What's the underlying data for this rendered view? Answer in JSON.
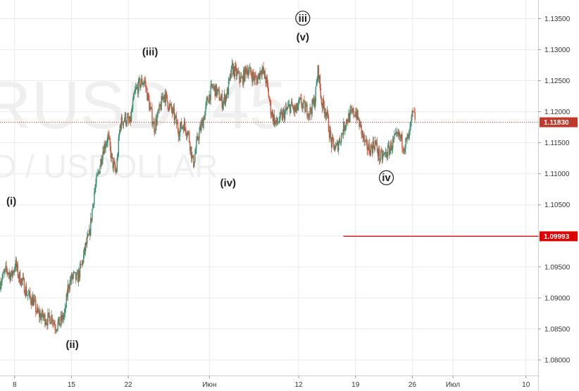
{
  "chart_data": {
    "type": "candlestick",
    "watermark": {
      "symbol": "RUSD, 45",
      "description": "D / USDOLLAR"
    },
    "x_ticks": [
      {
        "label": "8",
        "day": 8
      },
      {
        "label": "15",
        "day": 15
      },
      {
        "label": "22",
        "day": 22
      },
      {
        "label": "Июн",
        "day": 32
      },
      {
        "label": "12",
        "day": 43
      },
      {
        "label": "19",
        "day": 50
      },
      {
        "label": "26",
        "day": 57
      },
      {
        "label": "Июл",
        "day": 62
      },
      {
        "label": "10",
        "day": 71
      }
    ],
    "y_ticks": [
      "1.13500",
      "1.13000",
      "1.12500",
      "1.12000",
      "1.11500",
      "1.11000",
      "1.10500",
      "1.10000",
      "1.09500",
      "1.09000",
      "1.08500",
      "1.08000"
    ],
    "y_tick_values": [
      1.135,
      1.13,
      1.125,
      1.12,
      1.115,
      1.11,
      1.105,
      1.1,
      1.095,
      1.09,
      1.085,
      1.08
    ],
    "ylim": [
      1.0775,
      1.138
    ],
    "xlim": [
      6.2,
      72.5
    ],
    "current_price": {
      "label": "1.11830",
      "value": 1.1183,
      "color": "#c0392b"
    },
    "level_line": {
      "label": "1.09993",
      "value": 1.09993,
      "from_day": 48.5,
      "color": "#e00000"
    },
    "path": [
      [
        6.2,
        1.0925
      ],
      [
        7.0,
        1.0945
      ],
      [
        7.6,
        1.0935
      ],
      [
        8.1,
        1.0955
      ],
      [
        8.5,
        1.0935
      ],
      [
        9.0,
        1.0925
      ],
      [
        9.6,
        1.0905
      ],
      [
        10.3,
        1.0895
      ],
      [
        10.8,
        1.0875
      ],
      [
        11.4,
        1.087
      ],
      [
        12.0,
        1.0865
      ],
      [
        12.6,
        1.087
      ],
      [
        13.0,
        1.0855
      ],
      [
        13.6,
        1.086
      ],
      [
        14.2,
        1.0875
      ],
      [
        14.6,
        1.092
      ],
      [
        15.2,
        1.0935
      ],
      [
        15.7,
        1.093
      ],
      [
        16.2,
        1.095
      ],
      [
        16.8,
        1.0985
      ],
      [
        17.2,
        1.1
      ],
      [
        17.8,
        1.107
      ],
      [
        18.3,
        1.11
      ],
      [
        18.9,
        1.114
      ],
      [
        19.5,
        1.116
      ],
      [
        20.0,
        1.112
      ],
      [
        20.5,
        1.11
      ],
      [
        21.0,
        1.118
      ],
      [
        21.6,
        1.119
      ],
      [
        22.2,
        1.118
      ],
      [
        22.8,
        1.123
      ],
      [
        23.4,
        1.1245
      ],
      [
        24.0,
        1.125
      ],
      [
        24.6,
        1.121
      ],
      [
        25.2,
        1.1175
      ],
      [
        25.8,
        1.12
      ],
      [
        26.4,
        1.123
      ],
      [
        27.0,
        1.121
      ],
      [
        27.6,
        1.1195
      ],
      [
        28.2,
        1.117
      ],
      [
        28.8,
        1.118
      ],
      [
        29.4,
        1.1165
      ],
      [
        30.0,
        1.1115
      ],
      [
        30.6,
        1.116
      ],
      [
        31.2,
        1.1185
      ],
      [
        31.8,
        1.122
      ],
      [
        32.4,
        1.124
      ],
      [
        33.0,
        1.123
      ],
      [
        33.6,
        1.1215
      ],
      [
        34.2,
        1.123
      ],
      [
        34.8,
        1.127
      ],
      [
        35.4,
        1.126
      ],
      [
        36.0,
        1.125
      ],
      [
        36.6,
        1.127
      ],
      [
        37.2,
        1.126
      ],
      [
        37.8,
        1.125
      ],
      [
        38.4,
        1.127
      ],
      [
        39.0,
        1.125
      ],
      [
        39.6,
        1.12
      ],
      [
        40.2,
        1.118
      ],
      [
        40.8,
        1.119
      ],
      [
        41.4,
        1.12
      ],
      [
        42.0,
        1.121
      ],
      [
        42.6,
        1.12
      ],
      [
        43.2,
        1.1215
      ],
      [
        43.8,
        1.1205
      ],
      [
        44.4,
        1.12
      ],
      [
        45.0,
        1.122
      ],
      [
        45.4,
        1.127
      ],
      [
        45.8,
        1.1215
      ],
      [
        46.4,
        1.12
      ],
      [
        47.0,
        1.115
      ],
      [
        47.6,
        1.114
      ],
      [
        48.2,
        1.116
      ],
      [
        48.8,
        1.1185
      ],
      [
        49.4,
        1.1195
      ],
      [
        50.0,
        1.12
      ],
      [
        50.6,
        1.1175
      ],
      [
        51.2,
        1.1145
      ],
      [
        51.8,
        1.114
      ],
      [
        52.4,
        1.115
      ],
      [
        53.0,
        1.1125
      ],
      [
        53.6,
        1.113
      ],
      [
        54.2,
        1.114
      ],
      [
        54.8,
        1.1155
      ],
      [
        55.4,
        1.116
      ],
      [
        56.0,
        1.1145
      ],
      [
        56.6,
        1.116
      ],
      [
        57.0,
        1.1195
      ],
      [
        57.4,
        1.119
      ]
    ],
    "wave_labels": [
      {
        "text": "(i)",
        "day": 7.6,
        "price": 1.105
      },
      {
        "text": "(ii)",
        "day": 15.1,
        "price": 1.0819
      },
      {
        "text": "(iii)",
        "day": 24.7,
        "price": 1.1291
      },
      {
        "text": "(iv)",
        "day": 34.3,
        "price": 1.108
      },
      {
        "text": "(v)",
        "day": 43.5,
        "price": 1.1315
      },
      {
        "text": "iii",
        "day": 43.5,
        "price": 1.1345,
        "circled": true
      },
      {
        "text": "iv",
        "day": 53.8,
        "price": 1.1088,
        "circled": true
      }
    ]
  }
}
